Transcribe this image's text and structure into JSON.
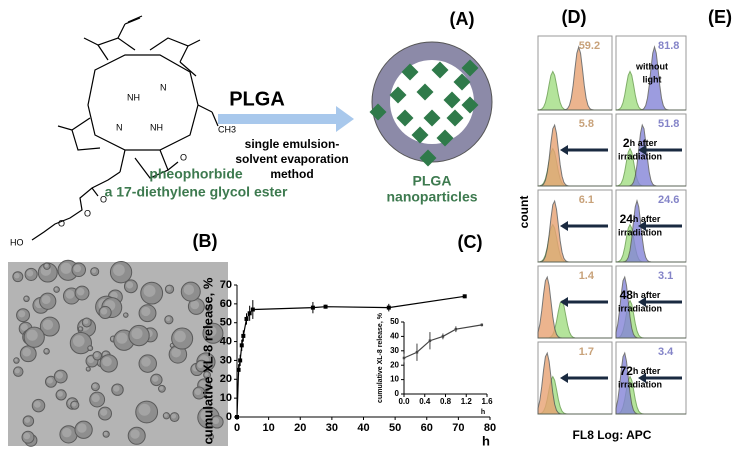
{
  "panel_labels": [
    "(A)",
    "(B)",
    "(C)",
    "(D)",
    "(E)"
  ],
  "scheme": {
    "reagent": "PLGA",
    "method": [
      "single emulsion-",
      "solvent evaporation",
      "method"
    ],
    "compound": [
      "pheophorbide",
      "a 17-diethylene glycol ester"
    ],
    "particles": [
      "PLGA",
      "nanoparticles"
    ],
    "structure_labels": [
      "NH",
      "N",
      "N",
      "NH",
      "O",
      "O",
      "O",
      "O",
      "HO",
      "CH3"
    ]
  },
  "chart_data": [
    {
      "type": "line",
      "xlabel": "h",
      "ylabel": "cumulative XL-8 release, %",
      "x": [
        0,
        0.5,
        1,
        1.5,
        2,
        3,
        4,
        5,
        24,
        28,
        48,
        72
      ],
      "series": [
        {
          "color": "#000000",
          "values": [
            0,
            25,
            30,
            38,
            43,
            52,
            55,
            57,
            58,
            58.5,
            58,
            64
          ],
          "errors": [
            1,
            3,
            3,
            3,
            3,
            3,
            4,
            5,
            3,
            1,
            2,
            1
          ]
        }
      ],
      "xlim": [
        0,
        80
      ],
      "ylim": [
        0,
        70
      ],
      "xticks": [
        0,
        10,
        20,
        30,
        40,
        50,
        60,
        70,
        80
      ],
      "yticks": [
        0,
        10,
        20,
        30,
        40,
        50,
        60,
        70
      ]
    },
    {
      "type": "line",
      "xlabel": "h",
      "ylabel": "cumulative XL-8 release, %",
      "x": [
        0,
        0.25,
        0.5,
        0.75,
        1,
        1.5
      ],
      "series": [
        {
          "color": "#444444",
          "values": [
            25,
            29,
            37,
            40,
            45,
            48
          ],
          "errors": [
            3,
            6,
            6,
            2,
            2,
            1
          ]
        }
      ],
      "xlim": [
        0,
        1.6
      ],
      "ylim": [
        0,
        50
      ],
      "xticks": [
        {
          "value": 0,
          "label": "0.0"
        },
        0.4,
        0.8,
        1.2,
        1.6
      ],
      "yticks": [
        0,
        10,
        20,
        30,
        40,
        50
      ]
    }
  ],
  "flow": {
    "y_label": "count",
    "x_label": "FL8 Log: APC",
    "rows": [
      {
        "lines": [
          "without",
          "light"
        ]
      },
      {
        "num": "2",
        "lines": [
          "h after",
          "irradiation"
        ]
      },
      {
        "num": "24",
        "lines": [
          "h after",
          "irradiation"
        ]
      },
      {
        "num": "48",
        "lines": [
          "h after",
          "irradiation"
        ]
      },
      {
        "num": "72",
        "lines": [
          "h after",
          "irradiation"
        ]
      }
    ],
    "D": [
      59.2,
      5.8,
      6.1,
      1.4,
      1.7
    ],
    "E": [
      81.8,
      51.8,
      24.6,
      3.1,
      3.4
    ]
  }
}
